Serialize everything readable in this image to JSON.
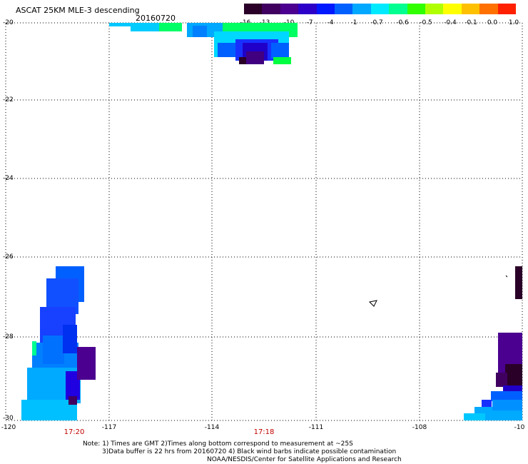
{
  "header": {
    "title": "ASCAT 25KM MLE-3 descending",
    "date": "20160720"
  },
  "colorbar": {
    "labels": [
      "-16",
      "-13",
      "-10",
      "-7",
      "-4",
      "-1",
      "-0.7",
      "-0.6",
      "-0.5",
      "-0.4",
      "-0.1",
      "0.0",
      "1.0"
    ],
    "colors": [
      "#2a0028",
      "#400060",
      "#4b0090",
      "#2c00c8",
      "#0018ff",
      "#0060ff",
      "#00a8ff",
      "#00eaff",
      "#00ff90",
      "#30ff00",
      "#b0ff00",
      "#ffff00",
      "#ffc000",
      "#ff7000",
      "#ff2000"
    ]
  },
  "axes": {
    "lat_labels": [
      "-20",
      "-22",
      "-24",
      "-26",
      "-28",
      "-30"
    ],
    "lon_labels": [
      "-120",
      "-117",
      "-114",
      "-111",
      "-108",
      "-10"
    ]
  },
  "time_labels": [
    "17:20",
    "17:18"
  ],
  "notes": [
    "Note: 1) Times are GMT 2)Times along bottom correspond to measurement at ~25S",
    "3)Data buffer is 22 hrs from 20160720 4) Black wind barbs indicate possible contamination",
    "NOAA/NESDIS/Center for Satellite Applications and Research"
  ]
}
